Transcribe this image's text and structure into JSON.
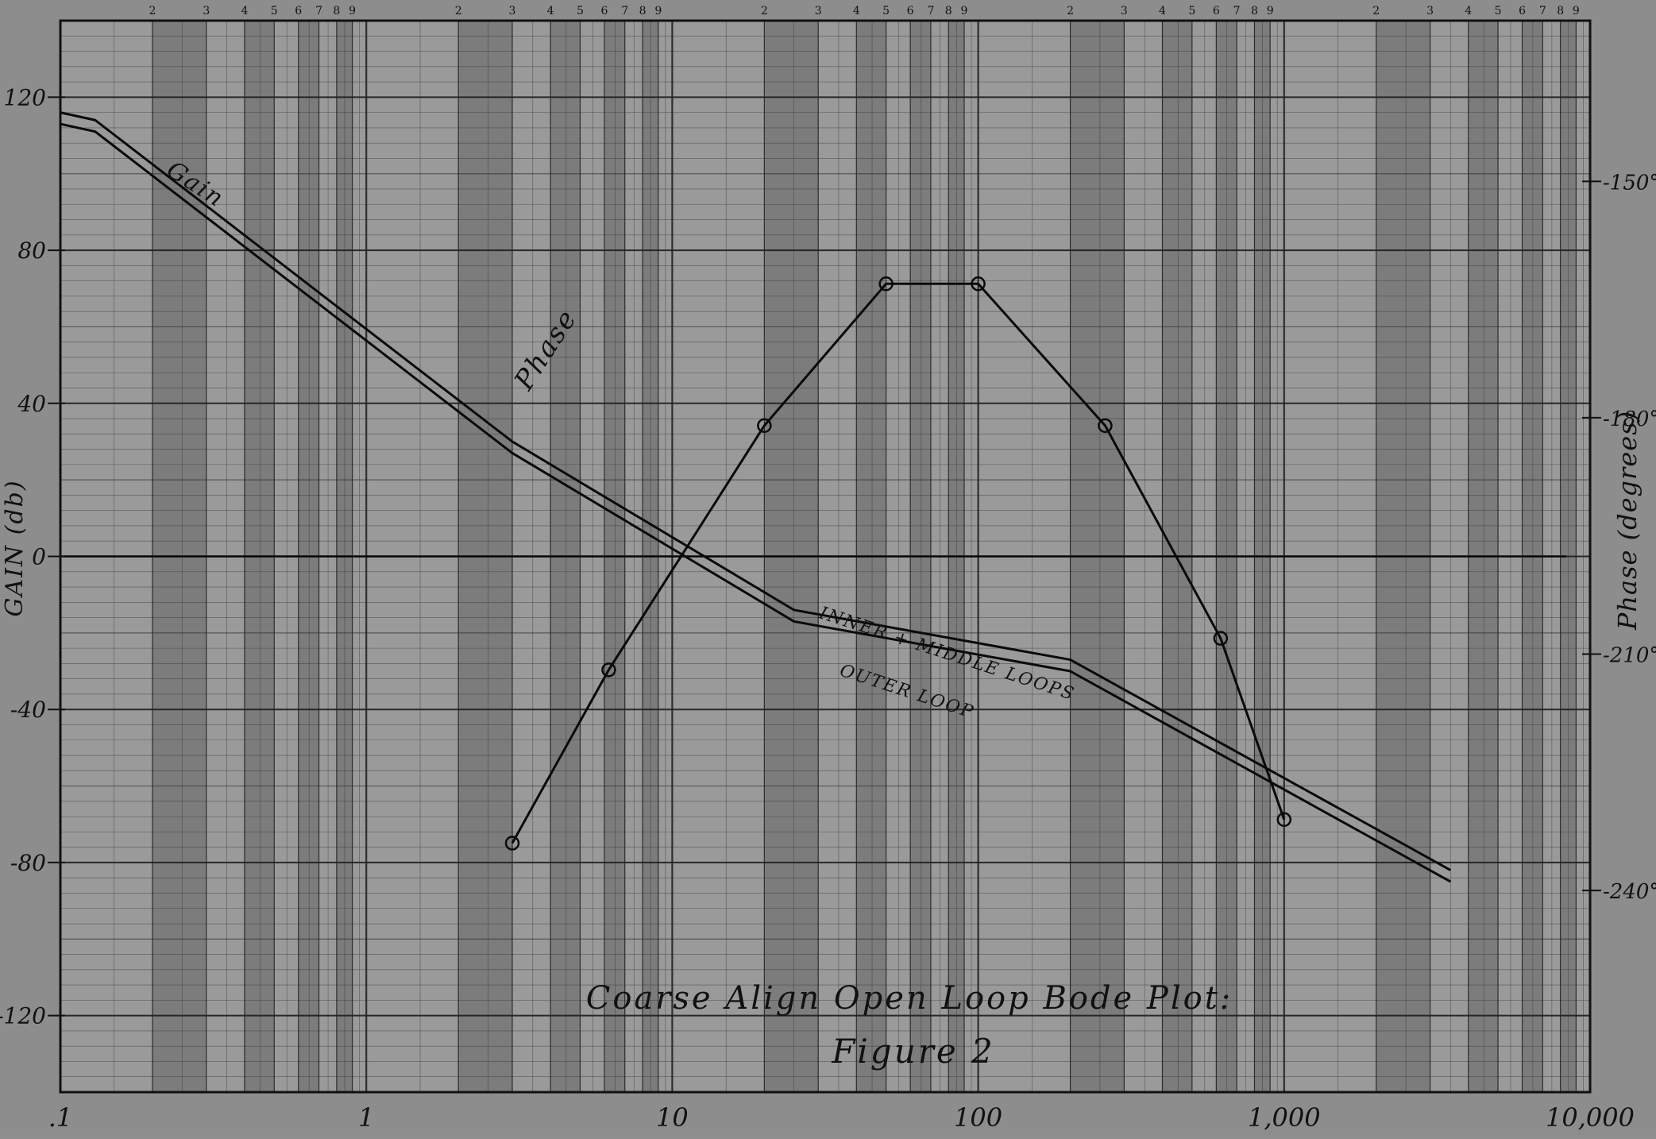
{
  "chart_data": {
    "type": "line",
    "title": "Coarse Align Open Loop Bode Plot:",
    "subtitle": "Figure 2",
    "xlabel": "",
    "ylabel": "GAIN (db)",
    "y2label": "Phase (degrees)",
    "x_scale": "log",
    "xlim": [
      0.1,
      10000
    ],
    "ylim": [
      -140,
      140
    ],
    "y2lim": [
      -265.6,
      -129.6
    ],
    "grid": true,
    "x_tick_labels": [
      {
        "x": 0.1,
        "label": ".1"
      },
      {
        "x": 1,
        "label": "1"
      },
      {
        "x": 10,
        "label": "10"
      },
      {
        "x": 100,
        "label": "100"
      },
      {
        "x": 1000,
        "label": "1,000"
      },
      {
        "x": 10000,
        "label": "10,000"
      }
    ],
    "y_tick_labels": [
      {
        "y": 120,
        "label": "120"
      },
      {
        "y": 80,
        "label": "80"
      },
      {
        "y": 40,
        "label": "40"
      },
      {
        "y": 0,
        "label": "0"
      },
      {
        "y": -40,
        "label": "-40"
      },
      {
        "y": -80,
        "label": "-80"
      },
      {
        "y": -120,
        "label": "-120"
      }
    ],
    "y2_tick_labels": [
      {
        "y": -150,
        "label": "-150°"
      },
      {
        "y": -180,
        "label": "-180°"
      },
      {
        "y": -210,
        "label": "-210°"
      },
      {
        "y": -240,
        "label": "-240°"
      }
    ],
    "series": [
      {
        "name": "INNER + MIDDLE LOOPS",
        "axis": "left",
        "x": [
          0.1,
          0.13,
          3,
          25,
          200,
          3500
        ],
        "values": [
          116,
          114,
          30,
          -14,
          -27,
          -82
        ]
      },
      {
        "name": "OUTER LOOP",
        "axis": "left",
        "x": [
          0.1,
          0.13,
          3,
          25,
          200,
          3500
        ],
        "values": [
          113,
          111,
          27,
          -17,
          -30,
          -85
        ]
      },
      {
        "name": "Phase",
        "axis": "right",
        "marker": "circle",
        "x": [
          3,
          6.2,
          20,
          50,
          100,
          260,
          620,
          1000
        ],
        "values": [
          -234,
          -212,
          -181,
          -163,
          -163,
          -181,
          -208,
          -231
        ]
      }
    ],
    "annotations": [
      {
        "text": "Gain",
        "x": 0.22,
        "y": 100
      },
      {
        "text": "Phase",
        "x": 3.4,
        "y": 43
      },
      {
        "text": "INNER + MIDDLE LOOPS",
        "x": 30,
        "y": -16
      },
      {
        "text": "OUTER LOOP",
        "x": 35,
        "y": -31
      }
    ]
  }
}
